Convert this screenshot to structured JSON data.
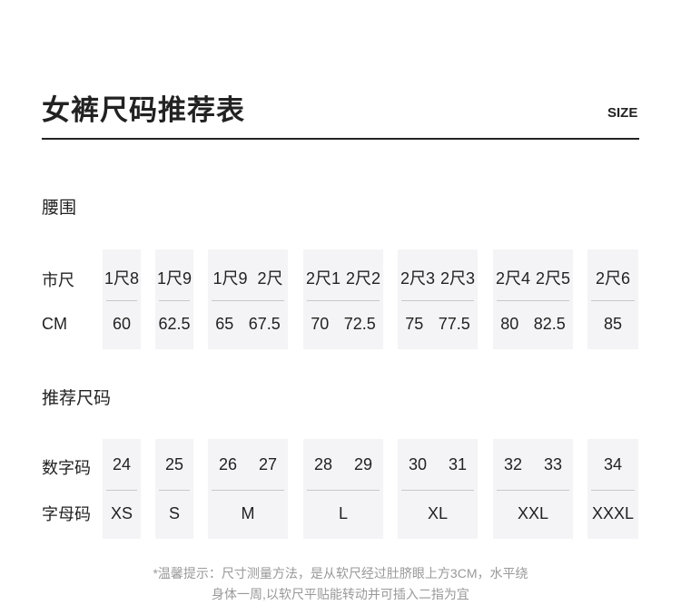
{
  "title": "女裤尺码推荐表",
  "size_label": "SIZE",
  "waist": {
    "heading": "腰围",
    "row_labels": [
      "市尺",
      "CM"
    ],
    "columns": [
      {
        "top": [
          "1尺8"
        ],
        "bottom": [
          "60"
        ]
      },
      {
        "top": [
          "1尺9"
        ],
        "bottom": [
          "62.5"
        ]
      },
      {
        "top": [
          "1尺9",
          "2尺"
        ],
        "bottom": [
          "65",
          "67.5"
        ]
      },
      {
        "top": [
          "2尺1",
          "2尺2"
        ],
        "bottom": [
          "70",
          "72.5"
        ]
      },
      {
        "top": [
          "2尺3",
          "2尺3"
        ],
        "bottom": [
          "75",
          "77.5"
        ]
      },
      {
        "top": [
          "2尺4",
          "2尺5"
        ],
        "bottom": [
          "80",
          "82.5"
        ]
      },
      {
        "top": [
          "2尺6"
        ],
        "bottom": [
          "85"
        ]
      }
    ]
  },
  "recommend": {
    "heading": "推荐尺码",
    "row_labels": [
      "数字码",
      "字母码"
    ],
    "columns": [
      {
        "top": [
          "24"
        ],
        "bottom": [
          "XS"
        ]
      },
      {
        "top": [
          "25"
        ],
        "bottom": [
          "S"
        ]
      },
      {
        "top": [
          "26",
          "27"
        ],
        "bottom": [
          "M"
        ]
      },
      {
        "top": [
          "28",
          "29"
        ],
        "bottom": [
          "L"
        ]
      },
      {
        "top": [
          "30",
          "31"
        ],
        "bottom": [
          "XL"
        ]
      },
      {
        "top": [
          "32",
          "33"
        ],
        "bottom": [
          "XXL"
        ]
      },
      {
        "top": [
          "34"
        ],
        "bottom": [
          "XXXL"
        ]
      }
    ]
  },
  "note": [
    "*温馨提示：尺寸测量方法，是从软尺经过肚脐眼上方3CM，水平绕",
    "身体一周,以软尺平贴能转动并可插入二指为宜"
  ]
}
